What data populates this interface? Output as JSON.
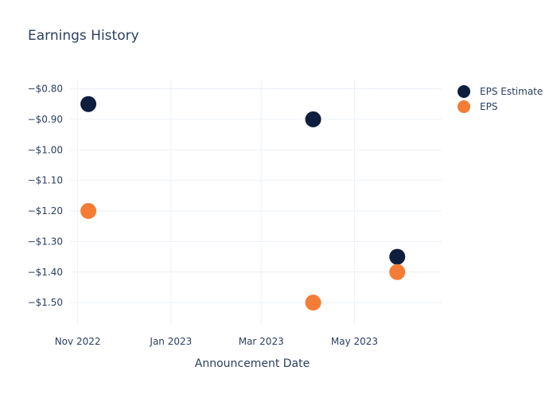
{
  "chart_data": {
    "type": "scatter",
    "title": "Earnings History",
    "xlabel": "Announcement Date",
    "ylabel": "",
    "x_ticks": [
      "Nov 2022",
      "Jan 2023",
      "Mar 2023",
      "May 2023"
    ],
    "y_ticks": [
      "−$0.80",
      "−$0.90",
      "−$1.00",
      "−$1.10",
      "−$1.20",
      "−$1.30",
      "−$1.40",
      "−$1.50"
    ],
    "y_tick_values": [
      -0.8,
      -0.9,
      -1.0,
      -1.1,
      -1.2,
      -1.3,
      -1.4,
      -1.5
    ],
    "ylim": [
      -1.57,
      -0.77
    ],
    "grid": true,
    "legend_position": "top-right",
    "series": [
      {
        "name": "EPS Estimate",
        "color": "#0d1f3c",
        "points": [
          {
            "x": "2022-11-08",
            "y": -0.85
          },
          {
            "x": "2023-04-04",
            "y": -0.9
          },
          {
            "x": "2023-05-29",
            "y": -1.35
          }
        ]
      },
      {
        "name": "EPS",
        "color": "#f47c34",
        "points": [
          {
            "x": "2022-11-08",
            "y": -1.2
          },
          {
            "x": "2023-04-04",
            "y": -1.5
          },
          {
            "x": "2023-05-29",
            "y": -1.4
          }
        ]
      }
    ]
  }
}
